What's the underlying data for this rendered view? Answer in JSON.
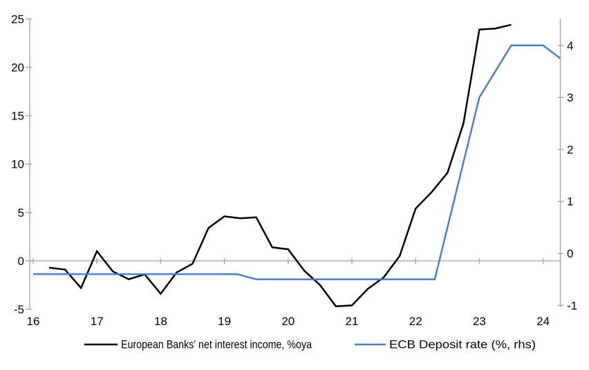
{
  "chart_data": {
    "type": "line",
    "title": "",
    "xlabel": "",
    "ylabel_left": "",
    "ylabel_right": "",
    "grid": "zero-line-only",
    "legend_position": "bottom-center",
    "x_axis": {
      "ticks": [
        16,
        17,
        18,
        19,
        20,
        21,
        22,
        23,
        24
      ],
      "labels": [
        "16",
        "17",
        "18",
        "19",
        "20",
        "21",
        "22",
        "23",
        "24"
      ],
      "range": [
        15.95,
        24.3
      ]
    },
    "left_axis": {
      "ticks": [
        -5,
        0,
        5,
        10,
        15,
        20,
        25
      ],
      "labels": [
        "-5",
        "0",
        "5",
        "10",
        "15",
        "20",
        "25"
      ],
      "range": [
        -5.05,
        25.05
      ]
    },
    "right_axis": {
      "ticks": [
        -1,
        0,
        1,
        2,
        3,
        4
      ],
      "labels": [
        "-1",
        "0",
        "1",
        "2",
        "3",
        "4"
      ],
      "range": [
        -1.03,
        4.5
      ]
    },
    "series": [
      {
        "name": "European Banks' net interest income, %oya",
        "axis": "left",
        "color": "#000000",
        "x": [
          16.25,
          16.5,
          16.75,
          17,
          17.25,
          17.5,
          17.75,
          18,
          18.25,
          18.5,
          18.75,
          19,
          19.25,
          19.5,
          19.75,
          20,
          20.25,
          20.5,
          20.75,
          21,
          21.25,
          21.5,
          21.75,
          22,
          22.25,
          22.5,
          22.75,
          23,
          23.25,
          23.5
        ],
        "y": [
          -0.7,
          -0.9,
          -2.8,
          1.0,
          -1.1,
          -1.9,
          -1.4,
          -3.4,
          -1.2,
          -0.3,
          3.4,
          4.6,
          4.4,
          4.5,
          1.4,
          1.2,
          -1.0,
          -2.5,
          -4.7,
          -4.6,
          -2.9,
          -1.7,
          0.5,
          5.4,
          7.1,
          9.1,
          14.2,
          23.9,
          24.0,
          24.4
        ]
      },
      {
        "name": "ECB Deposit rate (%, rhs)",
        "axis": "right",
        "color": "#4a80bd",
        "x": [
          16.0,
          19.2,
          19.5,
          22.3,
          23.0,
          23.5,
          24.0,
          24.27
        ],
        "y": [
          -0.4,
          -0.4,
          -0.5,
          -0.5,
          3.0,
          4.0,
          4.0,
          3.75
        ]
      }
    ],
    "colors": {
      "axis_gray": "#a6a6a6",
      "series_black": "#000000",
      "series_blue": "#4a80bd",
      "background": "#ffffff"
    }
  }
}
